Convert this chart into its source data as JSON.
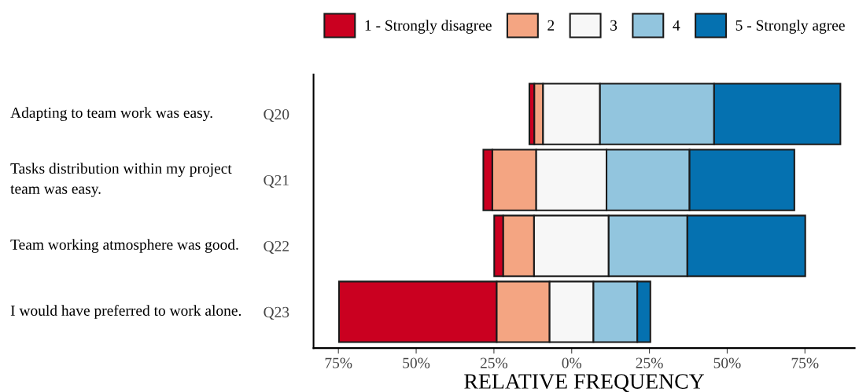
{
  "chart_data": {
    "type": "bar",
    "orientation": "horizontal",
    "xlabel": "RELATIVE FREQUENCY",
    "categories": [
      "Q20",
      "Q21",
      "Q22",
      "Q23"
    ],
    "series": [
      {
        "name": "1 - Strongly disagree",
        "color": "#ca0020",
        "base": [
          -13.6,
          -28.4,
          -24.9,
          -74.8
        ],
        "values": [
          1.6,
          2.9,
          2.9,
          50.7
        ]
      },
      {
        "name": "2",
        "color": "#f4a582",
        "base": [
          -12.0,
          -25.5,
          -22.0,
          -24.1
        ],
        "values": [
          2.8,
          14.1,
          9.9,
          17.0
        ]
      },
      {
        "name": "3",
        "color": "#f7f7f7",
        "base": [
          -9.2,
          -11.4,
          -12.1,
          -7.1
        ],
        "values": [
          18.3,
          22.6,
          24.0,
          14.1
        ]
      },
      {
        "name": "4",
        "color": "#92c5de",
        "base": [
          9.1,
          11.2,
          11.9,
          7.0
        ],
        "values": [
          36.7,
          26.7,
          25.3,
          14.1
        ]
      },
      {
        "name": "5 - Strongly agree",
        "color": "#0571b0",
        "base": [
          45.8,
          37.9,
          37.2,
          21.1
        ],
        "values": [
          40.6,
          33.7,
          37.9,
          4.2
        ]
      }
    ],
    "xlim": [
      -83,
      91
    ],
    "xticks": [
      {
        "value": -75,
        "label": "75%"
      },
      {
        "value": -50,
        "label": "50%"
      },
      {
        "value": -25,
        "label": "25%"
      },
      {
        "value": 0,
        "label": "0%"
      },
      {
        "value": 25,
        "label": "25%"
      },
      {
        "value": 50,
        "label": "50%"
      },
      {
        "value": 75,
        "label": "75%"
      }
    ],
    "annotations": [
      "Adapting to team work was easy.",
      "Tasks distribution within my project\nteam was easy.",
      "Team working atmosphere was good.",
      "I would have preferred to work alone."
    ],
    "grid": false,
    "legend": "top right"
  }
}
